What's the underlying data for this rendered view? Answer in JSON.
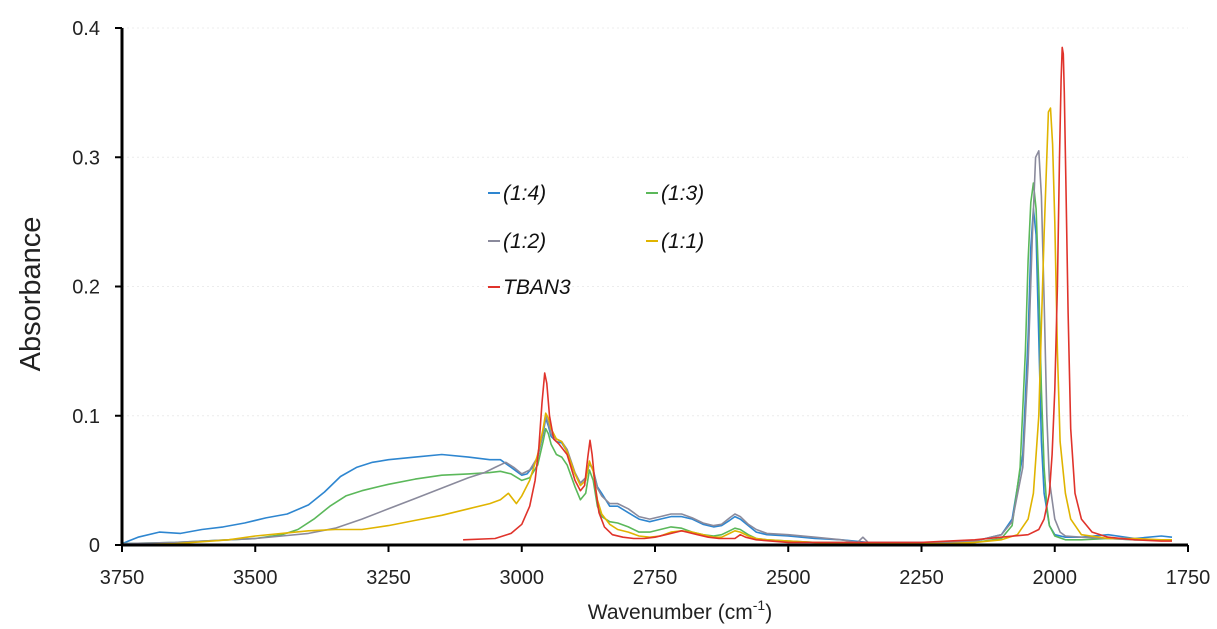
{
  "chart_data": {
    "type": "line",
    "xlabel": "Wavenumber (cm",
    "xlabel_sup": "-1",
    "xlabel_close": ")",
    "ylabel": "Absorbance",
    "xlim": [
      3750,
      1750
    ],
    "ylim": [
      0,
      0.4
    ],
    "x_reversed": true,
    "x_ticks": [
      3750,
      3500,
      3250,
      3000,
      2750,
      2500,
      2250,
      2000,
      1750
    ],
    "y_ticks": [
      0,
      0.1,
      0.2,
      0.3,
      0.4
    ],
    "y_tick_labels": [
      "0",
      "0.1",
      "0.2",
      "0.3",
      "0.4"
    ],
    "grid": "faint horizontal",
    "legend_position": "upper-center",
    "series": [
      {
        "name": "(1:4)",
        "color": "#2e86d0",
        "x": [
          3750,
          3720,
          3680,
          3640,
          3600,
          3560,
          3520,
          3480,
          3440,
          3400,
          3370,
          3340,
          3310,
          3280,
          3250,
          3200,
          3150,
          3100,
          3060,
          3040,
          3020,
          3000,
          2990,
          2980,
          2970,
          2960,
          2955,
          2950,
          2945,
          2935,
          2925,
          2915,
          2900,
          2890,
          2880,
          2873,
          2866,
          2858,
          2850,
          2835,
          2820,
          2800,
          2780,
          2760,
          2740,
          2720,
          2700,
          2680,
          2660,
          2640,
          2625,
          2610,
          2600,
          2590,
          2575,
          2560,
          2540,
          2500,
          2450,
          2400,
          2350,
          2300,
          2250,
          2200,
          2150,
          2100,
          2080,
          2060,
          2050,
          2045,
          2040,
          2035,
          2030,
          2025,
          2020,
          2010,
          2000,
          1980,
          1950,
          1900,
          1850,
          1800,
          1780
        ],
        "y": [
          0.001,
          0.006,
          0.01,
          0.009,
          0.012,
          0.014,
          0.017,
          0.021,
          0.024,
          0.031,
          0.041,
          0.053,
          0.06,
          0.064,
          0.066,
          0.068,
          0.07,
          0.068,
          0.066,
          0.066,
          0.06,
          0.054,
          0.055,
          0.06,
          0.068,
          0.086,
          0.098,
          0.092,
          0.084,
          0.08,
          0.079,
          0.072,
          0.055,
          0.048,
          0.052,
          0.063,
          0.058,
          0.045,
          0.04,
          0.03,
          0.03,
          0.025,
          0.02,
          0.018,
          0.02,
          0.022,
          0.022,
          0.02,
          0.016,
          0.014,
          0.015,
          0.019,
          0.022,
          0.02,
          0.015,
          0.01,
          0.008,
          0.007,
          0.005,
          0.004,
          0.002,
          0.002,
          0.002,
          0.002,
          0.003,
          0.008,
          0.02,
          0.07,
          0.16,
          0.23,
          0.26,
          0.24,
          0.16,
          0.08,
          0.04,
          0.015,
          0.008,
          0.006,
          0.006,
          0.008,
          0.005,
          0.007,
          0.006
        ]
      },
      {
        "name": "(1:3)",
        "color": "#5bb85a",
        "x": [
          3750,
          3650,
          3550,
          3500,
          3450,
          3420,
          3390,
          3360,
          3330,
          3300,
          3250,
          3200,
          3150,
          3100,
          3060,
          3040,
          3020,
          3000,
          2985,
          2970,
          2960,
          2955,
          2950,
          2945,
          2935,
          2925,
          2915,
          2900,
          2890,
          2880,
          2873,
          2866,
          2858,
          2850,
          2835,
          2820,
          2800,
          2780,
          2760,
          2740,
          2720,
          2700,
          2680,
          2660,
          2640,
          2625,
          2610,
          2600,
          2590,
          2575,
          2560,
          2540,
          2500,
          2450,
          2400,
          2350,
          2300,
          2250,
          2200,
          2150,
          2100,
          2080,
          2065,
          2055,
          2050,
          2045,
          2040,
          2035,
          2030,
          2025,
          2020,
          2015,
          2010,
          2000,
          1980,
          1950,
          1900,
          1850,
          1800,
          1780
        ],
        "y": [
          0.001,
          0.002,
          0.004,
          0.005,
          0.008,
          0.012,
          0.02,
          0.03,
          0.038,
          0.042,
          0.047,
          0.051,
          0.054,
          0.055,
          0.056,
          0.057,
          0.055,
          0.05,
          0.052,
          0.062,
          0.08,
          0.09,
          0.086,
          0.078,
          0.07,
          0.068,
          0.062,
          0.045,
          0.035,
          0.04,
          0.058,
          0.05,
          0.03,
          0.022,
          0.018,
          0.017,
          0.014,
          0.01,
          0.01,
          0.012,
          0.014,
          0.013,
          0.01,
          0.008,
          0.007,
          0.008,
          0.011,
          0.013,
          0.012,
          0.008,
          0.005,
          0.004,
          0.003,
          0.002,
          0.002,
          0.001,
          0.001,
          0.001,
          0.002,
          0.002,
          0.005,
          0.015,
          0.06,
          0.15,
          0.22,
          0.265,
          0.28,
          0.26,
          0.2,
          0.12,
          0.06,
          0.03,
          0.015,
          0.007,
          0.004,
          0.004,
          0.005,
          0.004,
          0.004,
          0.004
        ]
      },
      {
        "name": "(1:2)",
        "color": "#8a8a9c",
        "x": [
          3750,
          3650,
          3550,
          3500,
          3450,
          3400,
          3350,
          3300,
          3250,
          3200,
          3150,
          3100,
          3070,
          3050,
          3030,
          3015,
          3000,
          2985,
          2970,
          2960,
          2955,
          2950,
          2945,
          2935,
          2925,
          2915,
          2900,
          2890,
          2880,
          2873,
          2866,
          2858,
          2850,
          2835,
          2820,
          2800,
          2780,
          2760,
          2740,
          2720,
          2700,
          2680,
          2660,
          2640,
          2625,
          2610,
          2600,
          2590,
          2575,
          2560,
          2540,
          2500,
          2450,
          2400,
          2370,
          2360,
          2350,
          2300,
          2250,
          2200,
          2150,
          2100,
          2080,
          2060,
          2050,
          2042,
          2036,
          2030,
          2025,
          2020,
          2015,
          2010,
          2000,
          1990,
          1980,
          1950,
          1900,
          1850,
          1800,
          1780
        ],
        "y": [
          0.001,
          0.002,
          0.004,
          0.005,
          0.007,
          0.009,
          0.013,
          0.02,
          0.028,
          0.036,
          0.044,
          0.052,
          0.056,
          0.06,
          0.064,
          0.06,
          0.055,
          0.058,
          0.068,
          0.088,
          0.1,
          0.094,
          0.086,
          0.082,
          0.08,
          0.074,
          0.056,
          0.048,
          0.052,
          0.064,
          0.058,
          0.044,
          0.038,
          0.032,
          0.032,
          0.028,
          0.022,
          0.02,
          0.022,
          0.024,
          0.024,
          0.021,
          0.017,
          0.015,
          0.016,
          0.021,
          0.024,
          0.022,
          0.016,
          0.012,
          0.009,
          0.008,
          0.006,
          0.004,
          0.002,
          0.006,
          0.002,
          0.002,
          0.002,
          0.002,
          0.003,
          0.008,
          0.018,
          0.06,
          0.14,
          0.24,
          0.3,
          0.305,
          0.27,
          0.19,
          0.1,
          0.05,
          0.02,
          0.01,
          0.007,
          0.006,
          0.005,
          0.004,
          0.004,
          0.004
        ]
      },
      {
        "name": "(1:1)",
        "color": "#e0b400",
        "x": [
          3750,
          3650,
          3550,
          3500,
          3450,
          3400,
          3350,
          3300,
          3250,
          3200,
          3150,
          3100,
          3060,
          3040,
          3025,
          3010,
          3000,
          2985,
          2970,
          2960,
          2955,
          2950,
          2945,
          2935,
          2925,
          2915,
          2900,
          2890,
          2880,
          2873,
          2866,
          2858,
          2850,
          2835,
          2820,
          2800,
          2780,
          2760,
          2740,
          2720,
          2700,
          2680,
          2660,
          2640,
          2625,
          2610,
          2600,
          2590,
          2575,
          2560,
          2540,
          2500,
          2450,
          2400,
          2350,
          2300,
          2250,
          2200,
          2150,
          2100,
          2070,
          2050,
          2040,
          2030,
          2025,
          2020,
          2015,
          2012,
          2008,
          2004,
          2000,
          1995,
          1990,
          1980,
          1970,
          1950,
          1900,
          1850,
          1800,
          1780
        ],
        "y": [
          0.0,
          0.001,
          0.004,
          0.007,
          0.009,
          0.011,
          0.012,
          0.012,
          0.015,
          0.019,
          0.023,
          0.028,
          0.032,
          0.035,
          0.04,
          0.032,
          0.038,
          0.05,
          0.07,
          0.09,
          0.102,
          0.098,
          0.09,
          0.082,
          0.08,
          0.072,
          0.055,
          0.046,
          0.05,
          0.065,
          0.057,
          0.035,
          0.024,
          0.016,
          0.012,
          0.01,
          0.007,
          0.006,
          0.007,
          0.01,
          0.011,
          0.01,
          0.008,
          0.006,
          0.006,
          0.009,
          0.011,
          0.01,
          0.007,
          0.005,
          0.004,
          0.003,
          0.002,
          0.001,
          0.001,
          0.001,
          0.001,
          0.001,
          0.002,
          0.004,
          0.008,
          0.02,
          0.04,
          0.1,
          0.17,
          0.24,
          0.3,
          0.335,
          0.338,
          0.31,
          0.25,
          0.15,
          0.08,
          0.04,
          0.02,
          0.008,
          0.005,
          0.005,
          0.004,
          0.004
        ]
      },
      {
        "name": "TBAN3",
        "color": "#e0332b",
        "x": [
          3110,
          3050,
          3020,
          3000,
          2985,
          2975,
          2968,
          2962,
          2957,
          2953,
          2948,
          2940,
          2930,
          2915,
          2900,
          2890,
          2882,
          2876,
          2872,
          2868,
          2862,
          2855,
          2845,
          2830,
          2810,
          2790,
          2770,
          2750,
          2730,
          2710,
          2700,
          2690,
          2670,
          2650,
          2630,
          2600,
          2590,
          2580,
          2560,
          2500,
          2400,
          2300,
          2250,
          2200,
          2150,
          2100,
          2050,
          2030,
          2020,
          2010,
          2005,
          2000,
          1995,
          1991,
          1988,
          1986,
          1984,
          1982,
          1979,
          1975,
          1970,
          1962,
          1950,
          1930,
          1900,
          1850,
          1800,
          1780
        ],
        "y": [
          0.004,
          0.005,
          0.009,
          0.016,
          0.03,
          0.05,
          0.075,
          0.11,
          0.133,
          0.125,
          0.1,
          0.082,
          0.078,
          0.07,
          0.05,
          0.042,
          0.046,
          0.068,
          0.081,
          0.07,
          0.045,
          0.025,
          0.014,
          0.008,
          0.006,
          0.005,
          0.005,
          0.006,
          0.008,
          0.01,
          0.011,
          0.01,
          0.008,
          0.006,
          0.005,
          0.005,
          0.008,
          0.006,
          0.004,
          0.002,
          0.002,
          0.002,
          0.002,
          0.003,
          0.004,
          0.006,
          0.008,
          0.012,
          0.02,
          0.04,
          0.07,
          0.12,
          0.2,
          0.3,
          0.36,
          0.385,
          0.38,
          0.35,
          0.28,
          0.18,
          0.09,
          0.04,
          0.02,
          0.01,
          0.006,
          0.004,
          0.003,
          0.003
        ]
      }
    ]
  }
}
